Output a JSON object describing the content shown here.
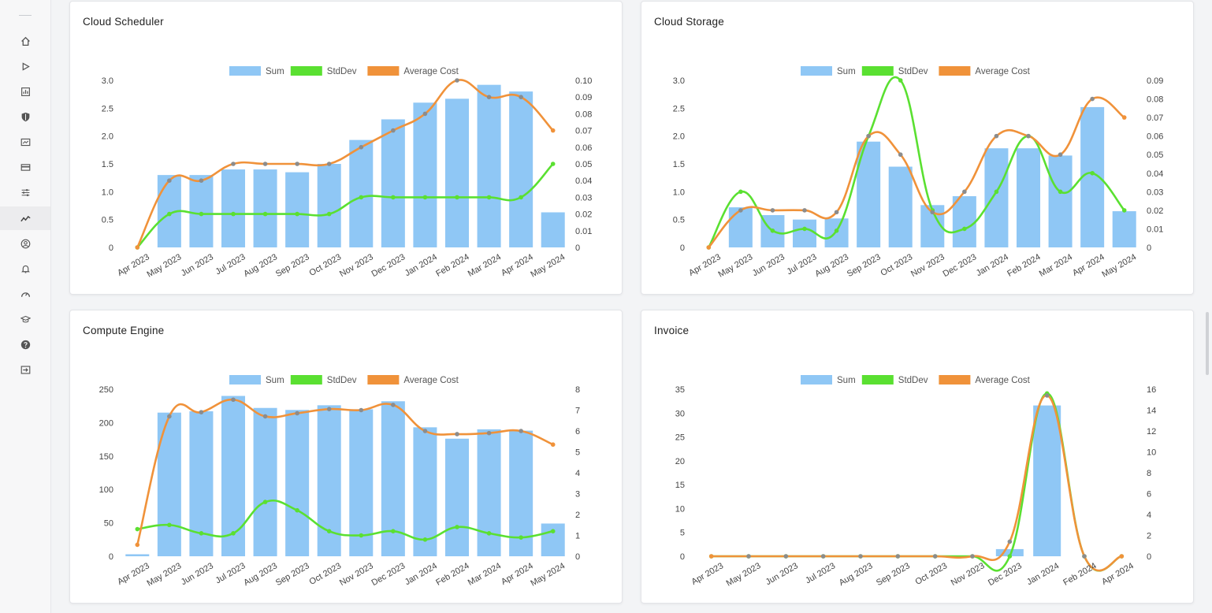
{
  "sidebar": {
    "icons": [
      "home-icon",
      "play-icon",
      "bar-chart-icon",
      "shield-icon",
      "report-icon",
      "credit-card-icon",
      "sliders-icon",
      "analytics-icon",
      "user-circle-icon",
      "bell-icon",
      "dashboard-gauge-icon",
      "graduation-cap-icon",
      "help-icon",
      "logout-icon"
    ],
    "active": "analytics-icon"
  },
  "legend": {
    "sum": "Sum",
    "stddev": "StdDev",
    "avg": "Average Cost"
  },
  "colors": {
    "sum": "#8fc7f5",
    "stddev": "#5ae031",
    "avg": "#f0923a",
    "point": "#8c8c8c"
  },
  "chart_data": [
    {
      "type": "bar",
      "title": "Cloud Scheduler",
      "categories": [
        "Apr 2023",
        "May 2023",
        "Jun 2023",
        "Jul 2023",
        "Aug 2023",
        "Sep 2023",
        "Oct 2023",
        "Nov 2023",
        "Dec 2023",
        "Jan 2024",
        "Feb 2024",
        "Mar 2024",
        "Apr 2024",
        "May 2024"
      ],
      "series": [
        {
          "name": "Sum",
          "kind": "bar",
          "axis": "left",
          "values": [
            0,
            1.3,
            1.3,
            1.4,
            1.4,
            1.35,
            1.5,
            1.93,
            2.3,
            2.6,
            2.67,
            2.92,
            2.8,
            0.63
          ]
        },
        {
          "name": "StdDev",
          "kind": "line",
          "axis": "right",
          "values": [
            0,
            0.02,
            0.02,
            0.02,
            0.02,
            0.02,
            0.02,
            0.03,
            0.03,
            0.03,
            0.03,
            0.03,
            0.03,
            0.05
          ]
        },
        {
          "name": "Average Cost",
          "kind": "line",
          "axis": "right",
          "values": [
            0,
            0.04,
            0.04,
            0.05,
            0.05,
            0.05,
            0.05,
            0.06,
            0.07,
            0.08,
            0.1,
            0.09,
            0.09,
            0.07
          ]
        }
      ],
      "yleft": {
        "ticks": [
          "0",
          "0.5",
          "1.0",
          "1.5",
          "2.0",
          "2.5",
          "3.0"
        ],
        "max": 3
      },
      "yright": {
        "ticks": [
          "0",
          "0.01",
          "0.02",
          "0.03",
          "0.04",
          "0.05",
          "0.06",
          "0.07",
          "0.08",
          "0.09",
          "0.10"
        ],
        "max": 0.1
      },
      "legend": "top-center"
    },
    {
      "type": "bar",
      "title": "Cloud Storage",
      "categories": [
        "Apr 2023",
        "May 2023",
        "Jun 2023",
        "Jul 2023",
        "Aug 2023",
        "Sep 2023",
        "Oct 2023",
        "Nov 2023",
        "Dec 2023",
        "Jan 2024",
        "Feb 2024",
        "Mar 2024",
        "Apr 2024",
        "May 2024"
      ],
      "series": [
        {
          "name": "Sum",
          "kind": "bar",
          "axis": "left",
          "values": [
            0,
            0.72,
            0.58,
            0.5,
            0.52,
            1.9,
            1.45,
            0.76,
            0.92,
            1.78,
            1.78,
            1.65,
            2.52,
            0.65
          ]
        },
        {
          "name": "StdDev",
          "kind": "line",
          "axis": "right",
          "values": [
            0,
            0.03,
            0.009,
            0.01,
            0.009,
            0.06,
            0.09,
            0.02,
            0.01,
            0.03,
            0.06,
            0.03,
            0.04,
            0.02
          ]
        },
        {
          "name": "Average Cost",
          "kind": "line",
          "axis": "right",
          "values": [
            0,
            0.02,
            0.02,
            0.02,
            0.019,
            0.06,
            0.05,
            0.019,
            0.03,
            0.06,
            0.06,
            0.05,
            0.08,
            0.07
          ]
        }
      ],
      "yleft": {
        "ticks": [
          "0",
          "0.5",
          "1.0",
          "1.5",
          "2.0",
          "2.5",
          "3.0"
        ],
        "max": 3
      },
      "yright": {
        "ticks": [
          "0",
          "0.01",
          "0.02",
          "0.03",
          "0.04",
          "0.05",
          "0.06",
          "0.07",
          "0.08",
          "0.09"
        ],
        "max": 0.09
      },
      "legend": "top-center"
    },
    {
      "type": "bar",
      "title": "Compute Engine",
      "categories": [
        "Apr 2023",
        "May 2023",
        "Jun 2023",
        "Jul 2023",
        "Aug 2023",
        "Sep 2023",
        "Oct 2023",
        "Nov 2023",
        "Dec 2023",
        "Jan 2024",
        "Feb 2024",
        "Mar 2024",
        "Apr 2024",
        "May 2024"
      ],
      "series": [
        {
          "name": "Sum",
          "kind": "bar",
          "axis": "left",
          "values": [
            3,
            215,
            217,
            240,
            222,
            219,
            226,
            220,
            232,
            193,
            176,
            190,
            188,
            49
          ]
        },
        {
          "name": "StdDev",
          "kind": "line",
          "axis": "right",
          "values": [
            1.3,
            1.5,
            1.1,
            1.1,
            2.6,
            2.2,
            1.2,
            1.0,
            1.2,
            0.8,
            1.4,
            1.1,
            0.9,
            1.2
          ]
        },
        {
          "name": "Average Cost",
          "kind": "line",
          "axis": "right",
          "values": [
            0.55,
            6.7,
            6.9,
            7.5,
            6.7,
            6.85,
            7.05,
            7.0,
            7.25,
            6.0,
            5.85,
            5.9,
            6.0,
            5.35
          ]
        }
      ],
      "yleft": {
        "ticks": [
          "0",
          "50",
          "100",
          "150",
          "200",
          "250"
        ],
        "max": 250
      },
      "yright": {
        "ticks": [
          "0",
          "1",
          "2",
          "3",
          "4",
          "5",
          "6",
          "7",
          "8"
        ],
        "max": 8
      },
      "legend": "top-center"
    },
    {
      "type": "bar",
      "title": "Invoice",
      "categories": [
        "Apr 2023",
        "May 2023",
        "Jun 2023",
        "Jul 2023",
        "Aug 2023",
        "Sep 2023",
        "Oct 2023",
        "Nov 2023",
        "Dec 2023",
        "Jan 2024",
        "Feb 2024",
        "Apr 2024"
      ],
      "series": [
        {
          "name": "Sum",
          "kind": "bar",
          "axis": "left",
          "values": [
            0,
            0,
            0,
            0,
            0,
            0,
            0,
            0,
            1.5,
            31.6,
            0,
            0
          ]
        },
        {
          "name": "StdDev",
          "kind": "line",
          "axis": "right",
          "values": [
            0,
            0,
            0,
            0,
            0,
            0,
            0,
            0,
            0,
            15.6,
            0,
            0
          ]
        },
        {
          "name": "Average Cost",
          "kind": "line",
          "axis": "right",
          "values": [
            0,
            0,
            0,
            0,
            0,
            0,
            0,
            0,
            1.4,
            15.4,
            0,
            0
          ]
        }
      ],
      "yleft": {
        "ticks": [
          "0",
          "5",
          "10",
          "15",
          "20",
          "25",
          "30",
          "35"
        ],
        "max": 35
      },
      "yright": {
        "ticks": [
          "0",
          "2",
          "4",
          "6",
          "8",
          "10",
          "12",
          "14",
          "16"
        ],
        "max": 16
      },
      "legend": "top-center"
    }
  ]
}
